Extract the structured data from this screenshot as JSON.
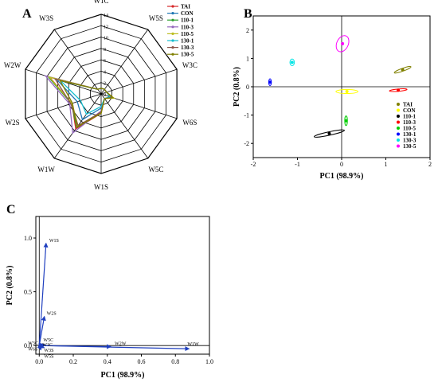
{
  "panels": {
    "a": "A",
    "b": "B",
    "c": "C"
  },
  "colors": {
    "TAI": "#808000",
    "CON": "#ffff00",
    "110-1": "#000000",
    "110-3": "#ff0000",
    "110-5": "#00cc00",
    "130-1": "#0000ff",
    "130-3": "#00e5e5",
    "130-5": "#ff00ff",
    "loading": "#1f3fbf"
  },
  "chart_data": [
    {
      "type": "radar",
      "axes": [
        "W1C",
        "W5S",
        "W3C",
        "W6S",
        "W5C",
        "W1S",
        "W1W",
        "W2S",
        "W2W",
        "W3S"
      ],
      "rlim": [
        0,
        14
      ],
      "ticks": [
        "0",
        "2",
        "4",
        "6",
        "8",
        "10",
        "12",
        "14"
      ],
      "legend": [
        "TAI",
        "CON",
        "110-1",
        "110-3",
        "110-5",
        "130-1",
        "130-3",
        "130-5"
      ],
      "series": [
        {
          "name": "TAI",
          "color": "#d62728",
          "values": [
            1,
            1,
            1,
            2.2,
            1,
            3.4,
            7.6,
            5.4,
            9.5,
            1
          ]
        },
        {
          "name": "CON",
          "color": "#1f77b4",
          "values": [
            1,
            1,
            1,
            1.8,
            1,
            2.5,
            5.6,
            4.4,
            8.2,
            1
          ]
        },
        {
          "name": "110-1",
          "color": "#2ca02c",
          "values": [
            1,
            1,
            1,
            2,
            1,
            3.2,
            7.3,
            5.5,
            9.8,
            1
          ]
        },
        {
          "name": "110-3",
          "color": "#9467bd",
          "values": [
            1,
            1,
            1,
            2,
            1,
            3,
            8.5,
            5.8,
            10.3,
            1
          ]
        },
        {
          "name": "110-5",
          "color": "#bcbd22",
          "values": [
            1,
            1,
            1,
            2.4,
            1,
            3.4,
            6.9,
            5.4,
            9.6,
            1
          ]
        },
        {
          "name": "130-1",
          "color": "#17becf",
          "values": [
            1,
            1,
            1,
            1.6,
            1,
            2.2,
            4.4,
            3.8,
            7.5,
            1
          ]
        },
        {
          "name": "130-3",
          "color": "#8c564b",
          "values": [
            1,
            1,
            1,
            2,
            1,
            3.2,
            6.9,
            5.6,
            8.5,
            1
          ]
        },
        {
          "name": "130-5",
          "color": "#7f7f00",
          "values": [
            1,
            1,
            1,
            2.2,
            1,
            3.4,
            7.2,
            5.3,
            7.6,
            1
          ]
        }
      ]
    },
    {
      "type": "scatter",
      "xlabel": "PC1 (98.9%)",
      "ylabel": "PC2 (0.8%)",
      "xlim": [
        -2,
        2
      ],
      "ylim": [
        -2.5,
        2.5
      ],
      "xticks": [
        "-2",
        "-1",
        "0",
        "1",
        "2"
      ],
      "yticks": [
        "-2",
        "-1",
        "0",
        "1",
        "2"
      ],
      "legend": [
        "TAI",
        "CON",
        "110-1",
        "110-3",
        "110-5",
        "130-1",
        "130-3",
        "130-5"
      ],
      "series": [
        {
          "name": "TAI",
          "x": 1.38,
          "y": 0.6,
          "rx": 0.2,
          "ry": 0.05,
          "rot": -20
        },
        {
          "name": "CON",
          "x": 0.12,
          "y": -0.17,
          "rx": 0.25,
          "ry": 0.07,
          "rot": 0
        },
        {
          "name": "110-1",
          "x": -0.28,
          "y": -1.65,
          "rx": 0.35,
          "ry": 0.06,
          "rot": -12
        },
        {
          "name": "110-3",
          "x": 1.28,
          "y": -0.12,
          "rx": 0.2,
          "ry": 0.04,
          "rot": -5
        },
        {
          "name": "110-5",
          "x": 0.1,
          "y": -1.2,
          "rx": 0.03,
          "ry": 0.17,
          "rot": 0
        },
        {
          "name": "130-1",
          "x": -1.62,
          "y": 0.16,
          "rx": 0.03,
          "ry": 0.12,
          "rot": 0
        },
        {
          "name": "130-3",
          "x": -1.12,
          "y": 0.86,
          "rx": 0.05,
          "ry": 0.12,
          "rot": 0
        },
        {
          "name": "130-5",
          "x": 0.02,
          "y": 1.52,
          "rx": 0.13,
          "ry": 0.3,
          "rot": 25
        }
      ]
    },
    {
      "type": "loading",
      "xlabel": "PC1 (98.9%)",
      "ylabel": "PC2 (0.8%)",
      "xlim": [
        -0.02,
        1.0
      ],
      "ylim": [
        -0.08,
        1.2
      ],
      "xticks": [
        "0.0",
        "0.2",
        "0.4",
        "0.6",
        "0.8",
        "1.0"
      ],
      "yticks": [
        "0.0",
        "0.5",
        "1.0"
      ],
      "vectors": [
        {
          "name": "W1S",
          "x": 0.04,
          "y": 0.95
        },
        {
          "name": "W2S",
          "x": 0.03,
          "y": 0.27
        },
        {
          "name": "W2W",
          "x": 0.42,
          "y": -0.01
        },
        {
          "name": "W1W",
          "x": 0.88,
          "y": -0.03
        },
        {
          "name": "W5C",
          "x": 0.01,
          "y": 0.01
        },
        {
          "name": "W3C",
          "x": 0.0,
          "y": 0.0
        },
        {
          "name": "W1C",
          "x": 0.0,
          "y": -0.005
        },
        {
          "name": "W6S",
          "x": 0.0,
          "y": -0.01
        },
        {
          "name": "W3S",
          "x": 0.01,
          "y": -0.02
        },
        {
          "name": "W5S",
          "x": 0.01,
          "y": -0.04
        }
      ]
    }
  ]
}
